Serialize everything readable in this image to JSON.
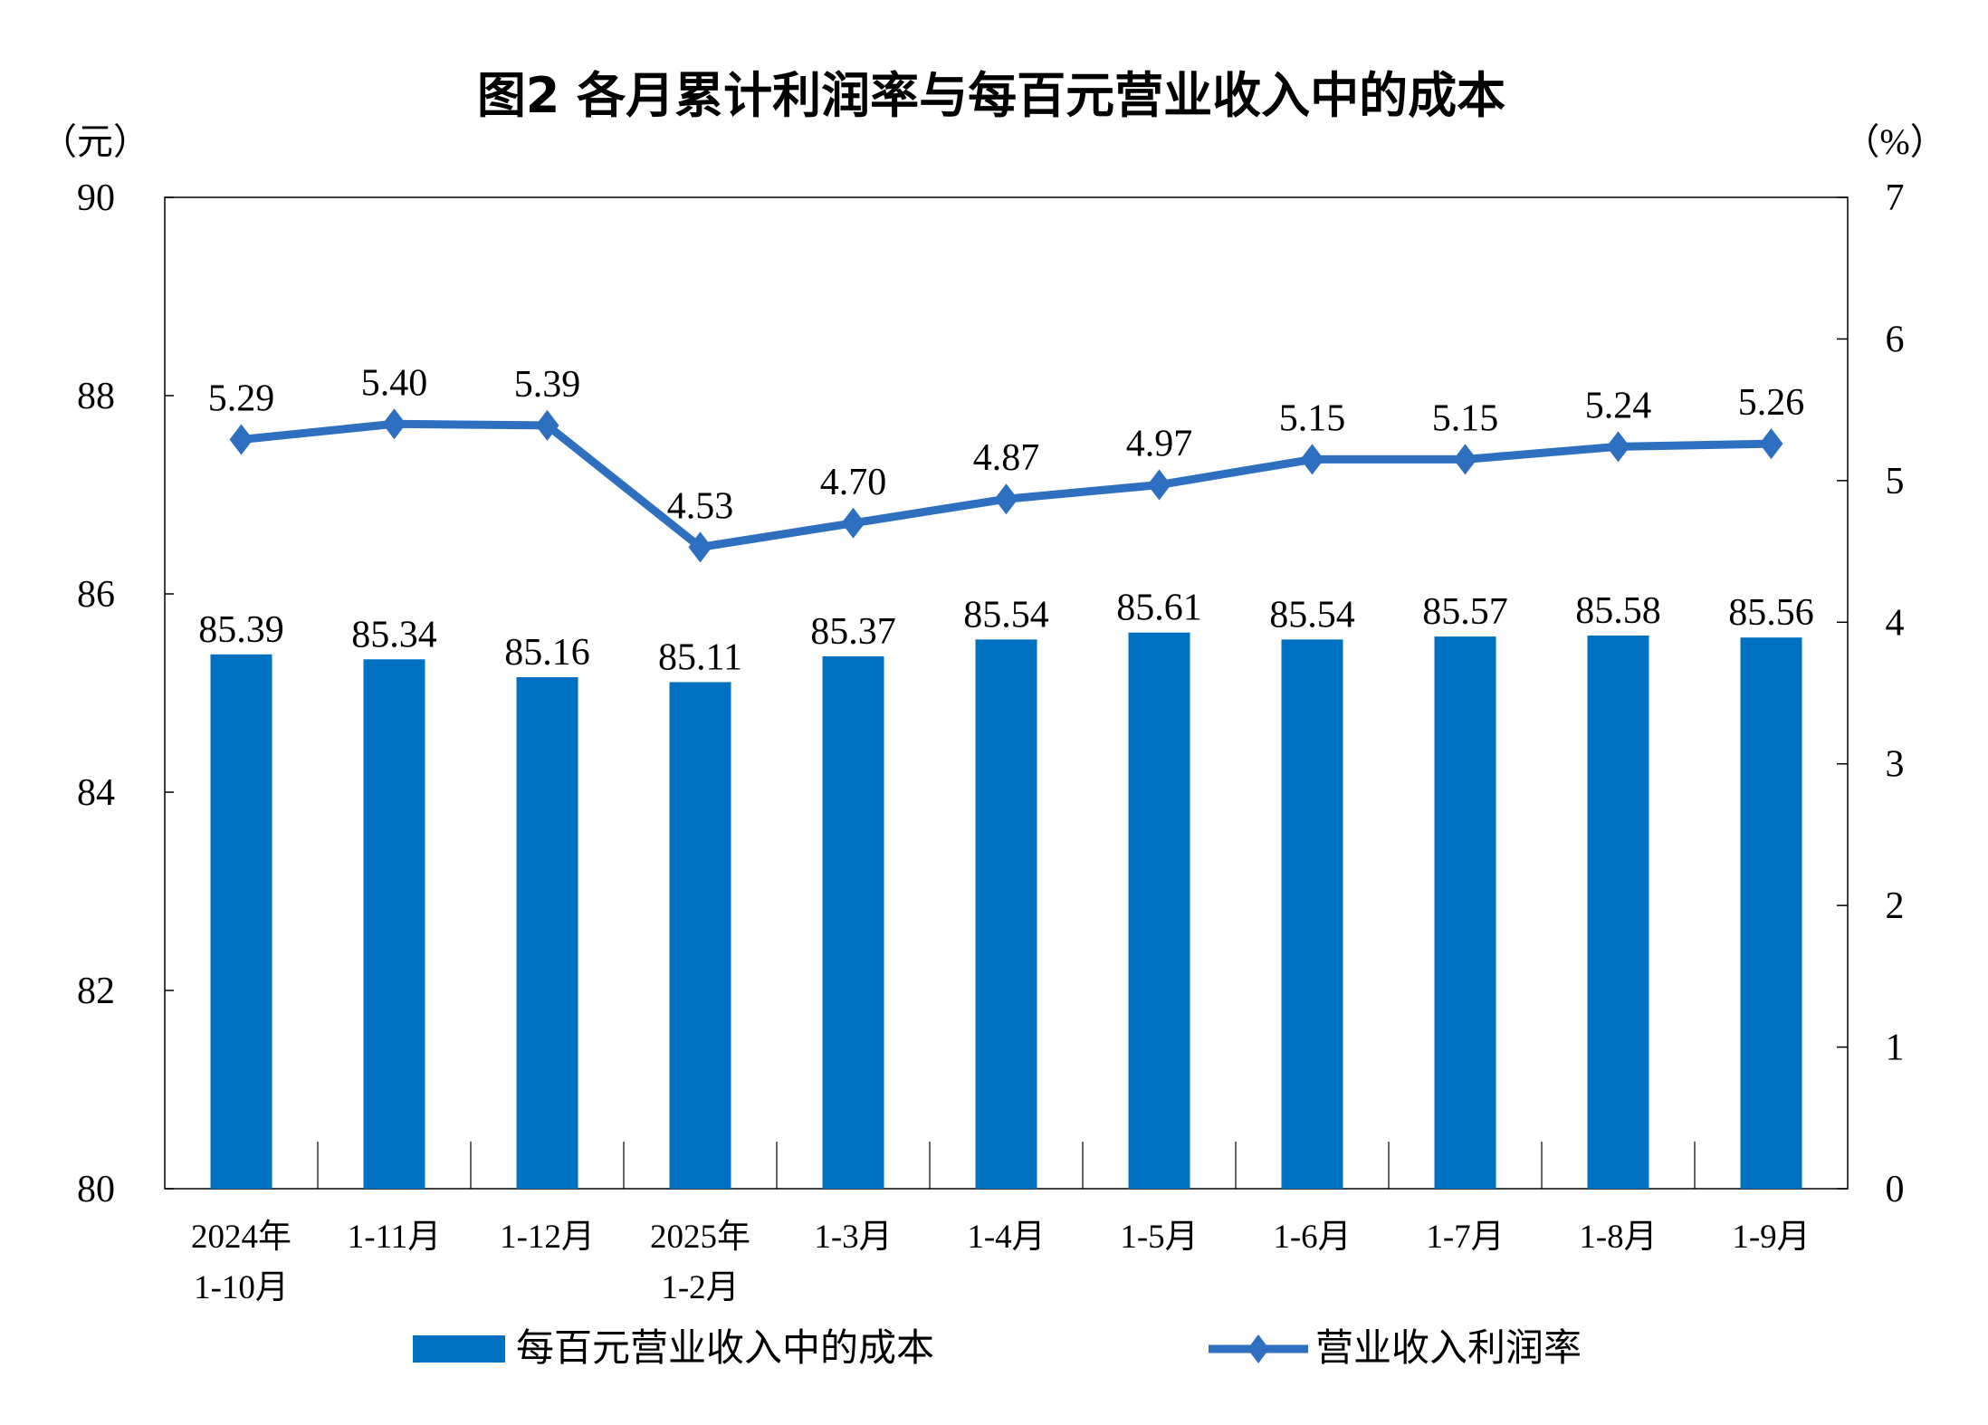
{
  "chart_data": {
    "type": "bar+line",
    "title": "图2  各月累计利润率与每百元营业收入中的成本",
    "left_unit": "（元）",
    "right_unit": "（%）",
    "categories": [
      [
        "2024年",
        "1-10月"
      ],
      [
        "1-11月"
      ],
      [
        "1-12月"
      ],
      [
        "2025年",
        "1-2月"
      ],
      [
        "1-3月"
      ],
      [
        "1-4月"
      ],
      [
        "1-5月"
      ],
      [
        "1-6月"
      ],
      [
        "1-7月"
      ],
      [
        "1-8月"
      ],
      [
        "1-9月"
      ]
    ],
    "left_axis": {
      "ylim": [
        80,
        90
      ],
      "ticks": [
        "80",
        "82",
        "84",
        "86",
        "88",
        "90"
      ]
    },
    "right_axis": {
      "ylim": [
        0,
        7
      ],
      "ticks": [
        "0",
        "1",
        "2",
        "3",
        "4",
        "5",
        "6",
        "7"
      ]
    },
    "series": [
      {
        "name": "每百元营业收入中的成本",
        "type": "bar",
        "axis": "left",
        "color": "#0070C0",
        "values": [
          85.39,
          85.34,
          85.16,
          85.11,
          85.37,
          85.54,
          85.61,
          85.54,
          85.57,
          85.58,
          85.56
        ],
        "labels": [
          "85.39",
          "85.34",
          "85.16",
          "85.11",
          "85.37",
          "85.54",
          "85.61",
          "85.54",
          "85.57",
          "85.58",
          "85.56"
        ]
      },
      {
        "name": "营业收入利润率",
        "type": "line",
        "axis": "right",
        "color": "#2E6FC0",
        "marker": "diamond",
        "values": [
          5.29,
          5.4,
          5.39,
          4.53,
          4.7,
          4.87,
          4.97,
          5.15,
          5.15,
          5.24,
          5.26
        ],
        "labels": [
          "5.29",
          "5.40",
          "5.39",
          "4.53",
          "4.70",
          "4.87",
          "4.97",
          "5.15",
          "5.15",
          "5.24",
          "5.26"
        ]
      }
    ],
    "grid": false,
    "legend_position": "bottom"
  }
}
